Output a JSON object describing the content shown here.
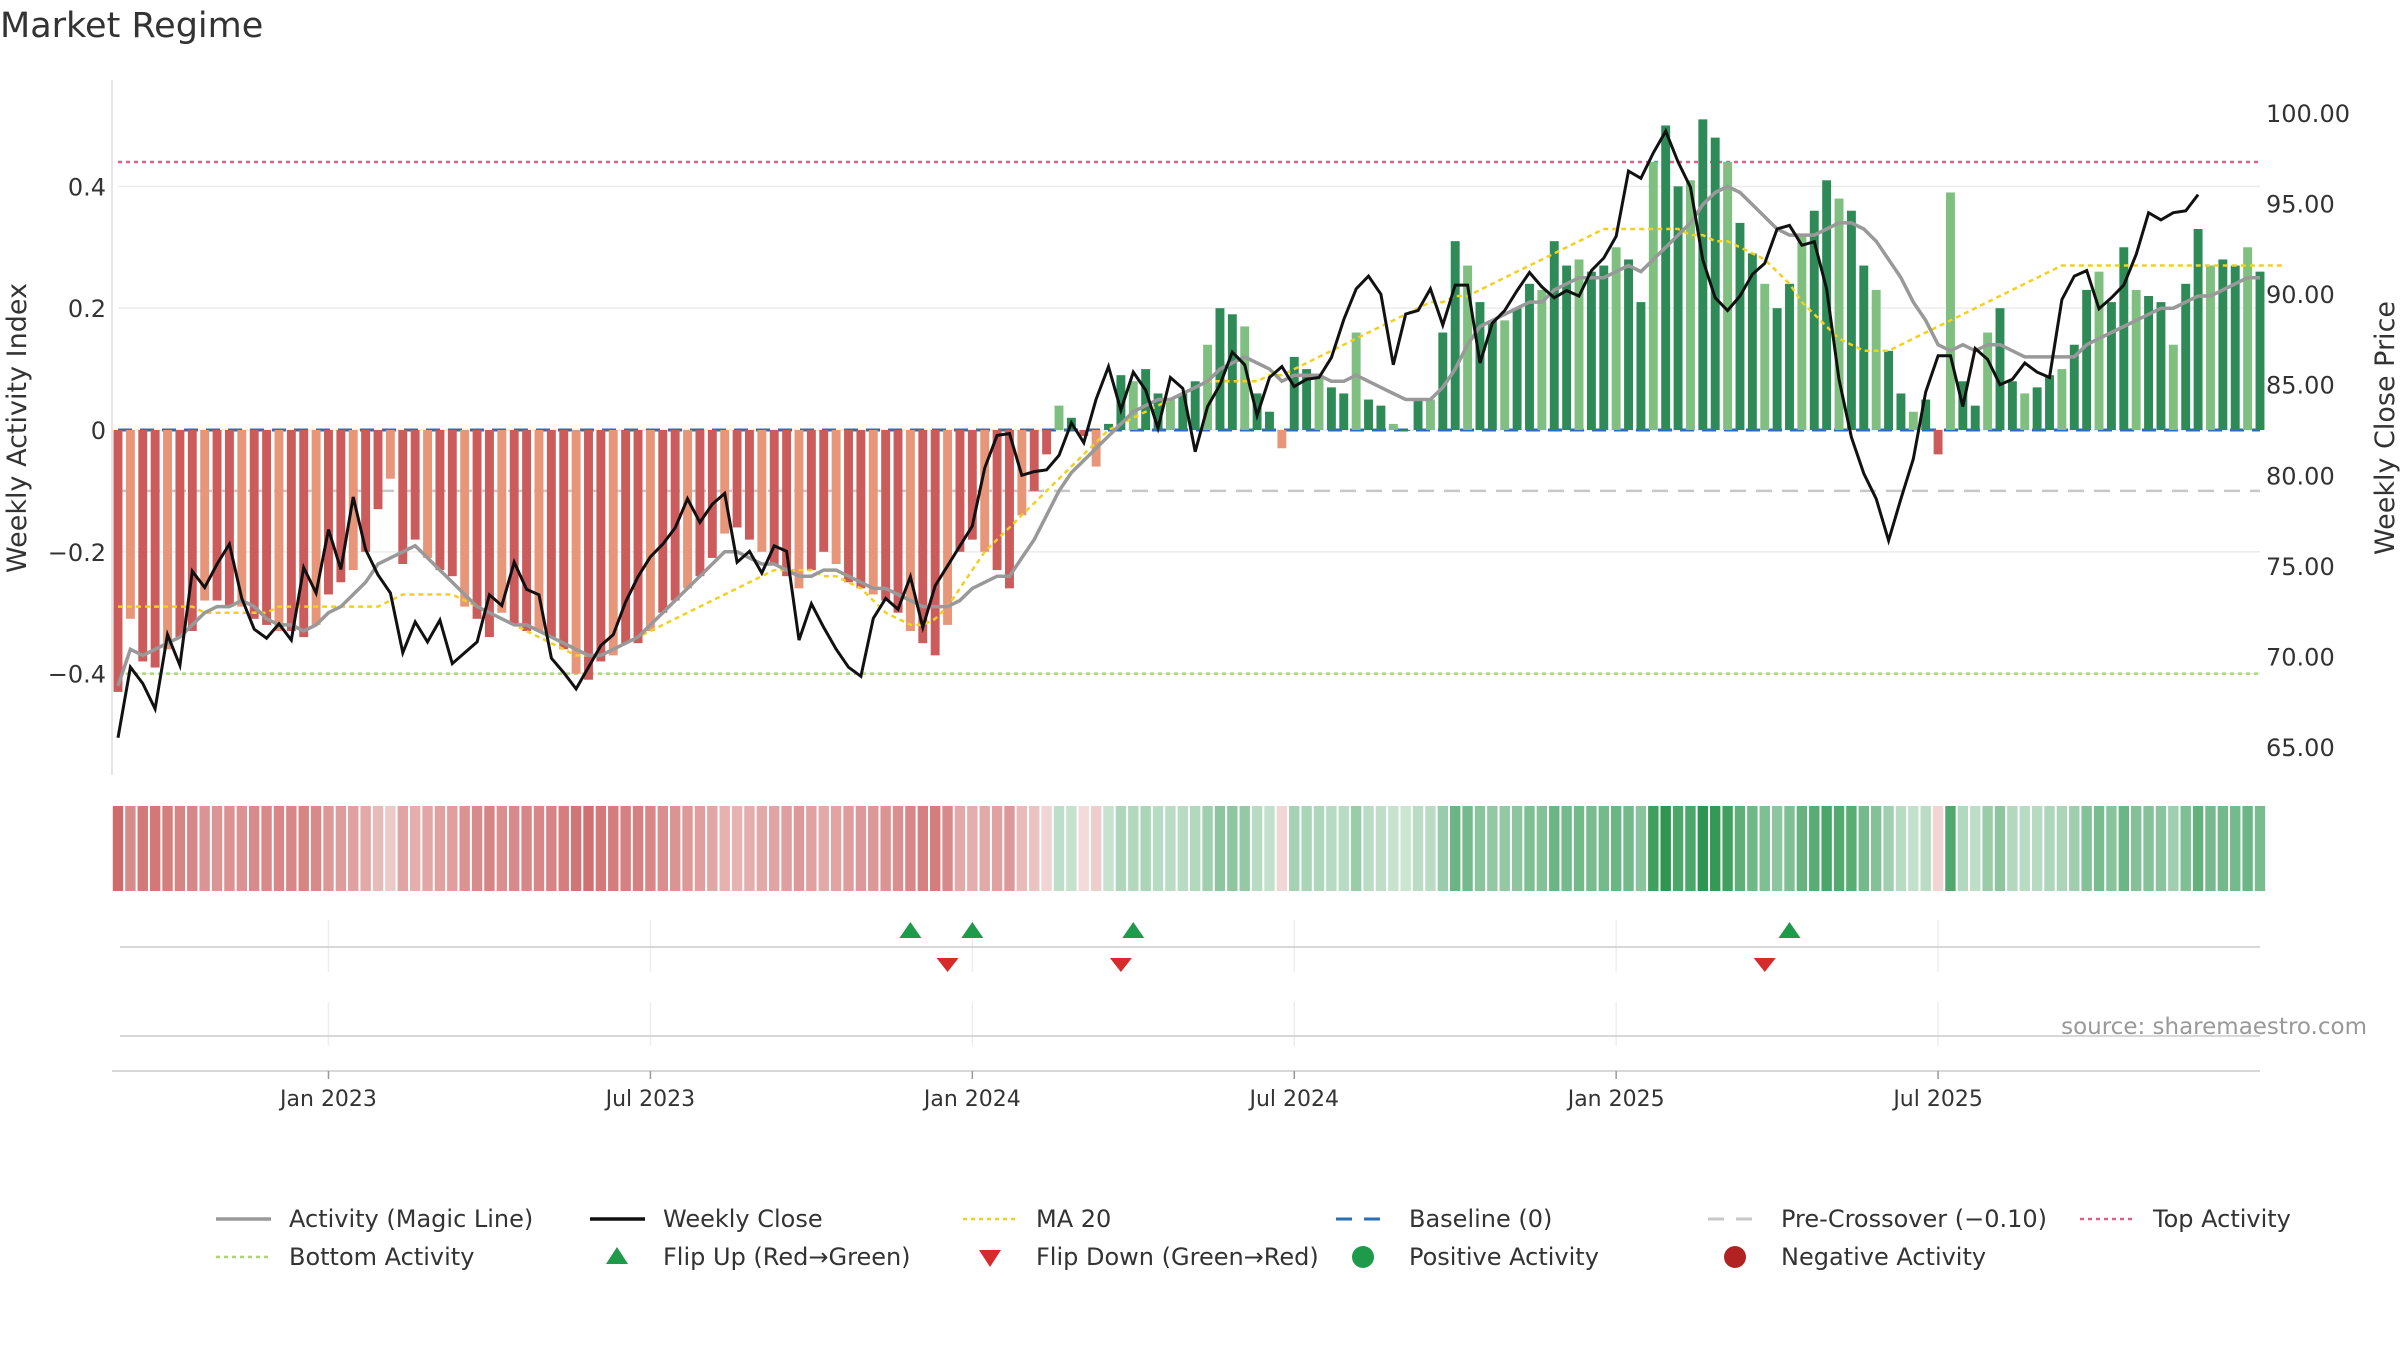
{
  "title": "Market Regime",
  "source": "source: sharemaestro.com",
  "colors": {
    "strong_red": "#cc5c5c",
    "light_red": "#e8967a",
    "strong_green": "#2e8b57",
    "light_green": "#7fbf7f",
    "magic_line": "#999999",
    "close_line": "#111111",
    "ma20": "#f0d020",
    "baseline": "#2a6fb5",
    "pre_crossover": "#c8c8c8",
    "top_activity": "#e0608a",
    "bottom_activity": "#a8d870",
    "flip_up": "#1e9b4a",
    "flip_down": "#d62b2b",
    "positive": "#1e9b4a",
    "negative": "#b22222"
  },
  "chart_data": {
    "type": "bar",
    "left_axis": {
      "label": "Weekly Activity Index",
      "ticks": [
        "0.4",
        "0.2",
        "0",
        "−0.2",
        "−0.4"
      ],
      "tick_values": [
        0.4,
        0.2,
        0,
        -0.2,
        -0.4
      ],
      "range": [
        -0.55,
        0.55
      ]
    },
    "right_axis": {
      "label": "Weekly Close Price",
      "ticks": [
        "100.00",
        "95.00",
        "90.00",
        "85.00",
        "80.00",
        "75.00",
        "70.00",
        "65.00"
      ],
      "tick_values": [
        100,
        95,
        90,
        85,
        80,
        75,
        70,
        65
      ],
      "range": [
        64,
        101
      ]
    },
    "x_axis": {
      "ticks": [
        "Jan 2023",
        "Jul 2023",
        "Jan 2024",
        "Jul 2024",
        "Jan 2025",
        "Jul 2025"
      ],
      "tick_weeks": [
        17,
        43,
        69,
        95,
        121,
        147
      ]
    },
    "reference_lines": {
      "top_activity": 0.44,
      "bottom_activity": -0.4,
      "pre_crossover": -0.1,
      "baseline": 0
    },
    "activity": [
      -0.43,
      -0.31,
      -0.38,
      -0.39,
      -0.36,
      -0.34,
      -0.33,
      -0.28,
      -0.28,
      -0.29,
      -0.29,
      -0.31,
      -0.32,
      -0.33,
      -0.33,
      -0.34,
      -0.32,
      -0.27,
      -0.25,
      -0.23,
      -0.2,
      -0.13,
      -0.08,
      -0.22,
      -0.18,
      -0.21,
      -0.23,
      -0.24,
      -0.29,
      -0.31,
      -0.34,
      -0.3,
      -0.32,
      -0.33,
      -0.33,
      -0.34,
      -0.36,
      -0.4,
      -0.41,
      -0.38,
      -0.37,
      -0.35,
      -0.35,
      -0.33,
      -0.3,
      -0.28,
      -0.26,
      -0.24,
      -0.21,
      -0.17,
      -0.16,
      -0.18,
      -0.2,
      -0.22,
      -0.24,
      -0.26,
      -0.23,
      -0.2,
      -0.22,
      -0.25,
      -0.26,
      -0.27,
      -0.28,
      -0.3,
      -0.33,
      -0.35,
      -0.37,
      -0.32,
      -0.2,
      -0.18,
      -0.2,
      -0.23,
      -0.26,
      -0.14,
      -0.1,
      -0.04,
      0.04,
      0.02,
      -0.01,
      -0.06,
      0.01,
      0.09,
      0.08,
      0.1,
      0.06,
      0.05,
      0.06,
      0.08,
      0.14,
      0.2,
      0.19,
      0.17,
      0.06,
      0.03,
      -0.03,
      0.12,
      0.1,
      0.09,
      0.07,
      0.06,
      0.16,
      0.05,
      0.04,
      0.01,
      0.0,
      0.05,
      0.05,
      0.16,
      0.31,
      0.27,
      0.21,
      0.18,
      0.18,
      0.2,
      0.24,
      0.23,
      0.31,
      0.27,
      0.28,
      0.26,
      0.27,
      0.3,
      0.28,
      0.21,
      0.44,
      0.5,
      0.4,
      0.41,
      0.51,
      0.48,
      0.44,
      0.34,
      0.29,
      0.24,
      0.2,
      0.24,
      0.32,
      0.36,
      0.41,
      0.38,
      0.36,
      0.27,
      0.23,
      0.13,
      0.06,
      0.03,
      0.05,
      -0.04,
      0.39,
      0.08,
      0.04,
      0.16,
      0.2,
      0.08,
      0.06,
      0.07,
      0.09,
      0.1,
      0.14,
      0.23,
      0.26,
      0.21,
      0.3,
      0.23,
      0.22,
      0.21,
      0.14,
      0.24,
      0.33,
      0.27,
      0.28,
      0.27,
      0.3,
      0.26
    ],
    "weekly_close": [
      65.5,
      69.4,
      68.5,
      67.1,
      71.2,
      69.5,
      74.7,
      73.8,
      75.1,
      76.2,
      73.2,
      71.5,
      71.0,
      71.8,
      70.9,
      74.9,
      73.5,
      77.0,
      74.8,
      78.8,
      75.9,
      74.5,
      73.5,
      70.2,
      71.9,
      70.8,
      72.0,
      69.6,
      70.2,
      70.8,
      73.4,
      72.8,
      75.2,
      73.7,
      73.4,
      69.9,
      69.1,
      68.2,
      69.4,
      70.6,
      71.2,
      73.0,
      74.4,
      75.5,
      76.2,
      77.1,
      78.7,
      77.4,
      78.4,
      79.0,
      75.2,
      75.8,
      74.6,
      76.1,
      75.8,
      70.9,
      72.9,
      71.6,
      70.4,
      69.4,
      68.9,
      72.1,
      73.2,
      72.6,
      74.4,
      71.6,
      73.9,
      75.0,
      76.1,
      77.2,
      80.4,
      82.2,
      82.3,
      80.0,
      80.2,
      80.3,
      81.1,
      82.9,
      81.8,
      84.2,
      86.0,
      83.6,
      85.7,
      84.7,
      82.6,
      85.4,
      84.8,
      81.3,
      83.8,
      85.0,
      86.8,
      86.1,
      83.3,
      85.4,
      86.0,
      84.9,
      85.3,
      85.4,
      86.5,
      88.6,
      90.3,
      91.0,
      90.0,
      86.1,
      88.9,
      89.1,
      90.3,
      88.3,
      90.5,
      90.5,
      86.2,
      88.4,
      89.1,
      90.2,
      91.2,
      90.4,
      89.8,
      90.2,
      89.9,
      91.3,
      92.0,
      93.2,
      96.8,
      96.4,
      97.8,
      99.0,
      97.3,
      95.9,
      91.9,
      89.8,
      89.1,
      89.9,
      91.1,
      91.7,
      93.6,
      93.8,
      92.7,
      92.9,
      90.3,
      85.3,
      82.1,
      80.1,
      78.7,
      76.4,
      78.7,
      80.9,
      84.6,
      86.6,
      86.6,
      83.8,
      87.0,
      86.4,
      85.0,
      85.3,
      86.2,
      85.7,
      85.4,
      89.7,
      91.0,
      91.3,
      89.2,
      89.8,
      90.5,
      92.2,
      94.5,
      94.1,
      94.5,
      94.6,
      95.5
    ],
    "magic_line": [
      -0.42,
      -0.36,
      -0.37,
      -0.36,
      -0.35,
      -0.34,
      -0.32,
      -0.3,
      -0.29,
      -0.29,
      -0.28,
      -0.29,
      -0.31,
      -0.32,
      -0.32,
      -0.33,
      -0.32,
      -0.3,
      -0.29,
      -0.27,
      -0.25,
      -0.22,
      -0.21,
      -0.2,
      -0.19,
      -0.21,
      -0.23,
      -0.25,
      -0.27,
      -0.29,
      -0.3,
      -0.31,
      -0.32,
      -0.32,
      -0.33,
      -0.34,
      -0.35,
      -0.36,
      -0.37,
      -0.37,
      -0.36,
      -0.35,
      -0.34,
      -0.32,
      -0.3,
      -0.28,
      -0.26,
      -0.24,
      -0.22,
      -0.2,
      -0.2,
      -0.21,
      -0.22,
      -0.22,
      -0.23,
      -0.24,
      -0.24,
      -0.23,
      -0.23,
      -0.24,
      -0.25,
      -0.26,
      -0.26,
      -0.27,
      -0.28,
      -0.29,
      -0.29,
      -0.29,
      -0.28,
      -0.26,
      -0.25,
      -0.24,
      -0.24,
      -0.21,
      -0.18,
      -0.14,
      -0.1,
      -0.07,
      -0.05,
      -0.03,
      -0.01,
      0.01,
      0.03,
      0.04,
      0.05,
      0.05,
      0.06,
      0.07,
      0.08,
      0.1,
      0.11,
      0.12,
      0.11,
      0.1,
      0.08,
      0.09,
      0.09,
      0.09,
      0.08,
      0.08,
      0.09,
      0.08,
      0.07,
      0.06,
      0.05,
      0.05,
      0.05,
      0.07,
      0.1,
      0.14,
      0.17,
      0.18,
      0.19,
      0.2,
      0.21,
      0.21,
      0.23,
      0.24,
      0.25,
      0.25,
      0.25,
      0.26,
      0.27,
      0.26,
      0.28,
      0.3,
      0.32,
      0.34,
      0.37,
      0.39,
      0.4,
      0.39,
      0.37,
      0.35,
      0.33,
      0.32,
      0.32,
      0.32,
      0.33,
      0.34,
      0.34,
      0.33,
      0.31,
      0.28,
      0.25,
      0.21,
      0.18,
      0.14,
      0.13,
      0.14,
      0.13,
      0.14,
      0.14,
      0.13,
      0.12,
      0.12,
      0.12,
      0.12,
      0.12,
      0.14,
      0.15,
      0.16,
      0.17,
      0.18,
      0.19,
      0.2,
      0.2,
      0.21,
      0.22,
      0.22,
      0.23,
      0.24,
      0.25,
      0.25
    ],
    "ma20": [
      -0.29,
      -0.29,
      -0.29,
      -0.29,
      -0.29,
      -0.29,
      -0.29,
      -0.3,
      -0.3,
      -0.3,
      -0.3,
      -0.3,
      -0.3,
      -0.29,
      -0.29,
      -0.29,
      -0.29,
      -0.29,
      -0.29,
      -0.29,
      -0.29,
      -0.29,
      -0.28,
      -0.27,
      -0.27,
      -0.27,
      -0.27,
      -0.27,
      -0.28,
      -0.29,
      -0.3,
      -0.31,
      -0.32,
      -0.33,
      -0.34,
      -0.35,
      -0.36,
      -0.37,
      -0.37,
      -0.37,
      -0.36,
      -0.35,
      -0.34,
      -0.33,
      -0.32,
      -0.31,
      -0.3,
      -0.29,
      -0.28,
      -0.27,
      -0.26,
      -0.25,
      -0.24,
      -0.23,
      -0.23,
      -0.23,
      -0.23,
      -0.24,
      -0.24,
      -0.25,
      -0.26,
      -0.28,
      -0.3,
      -0.31,
      -0.32,
      -0.32,
      -0.31,
      -0.29,
      -0.26,
      -0.23,
      -0.2,
      -0.18,
      -0.16,
      -0.14,
      -0.12,
      -0.1,
      -0.08,
      -0.06,
      -0.04,
      -0.02,
      0.0,
      0.01,
      0.02,
      0.03,
      0.04,
      0.05,
      0.06,
      0.07,
      0.08,
      0.08,
      0.08,
      0.08,
      0.08,
      0.09,
      0.09,
      0.1,
      0.11,
      0.12,
      0.13,
      0.14,
      0.15,
      0.16,
      0.17,
      0.18,
      0.19,
      0.2,
      0.21,
      0.21,
      0.22,
      0.22,
      0.23,
      0.24,
      0.25,
      0.26,
      0.27,
      0.28,
      0.29,
      0.3,
      0.31,
      0.32,
      0.33,
      0.33,
      0.33,
      0.33,
      0.33,
      0.33,
      0.33,
      0.32,
      0.32,
      0.31,
      0.31,
      0.3,
      0.29,
      0.28,
      0.26,
      0.24,
      0.21,
      0.19,
      0.17,
      0.15,
      0.14,
      0.13,
      0.13,
      0.13,
      0.14,
      0.15,
      0.16,
      0.17,
      0.18,
      0.19,
      0.2,
      0.21,
      0.22,
      0.23,
      0.24,
      0.25,
      0.26,
      0.27,
      0.27,
      0.27,
      0.27,
      0.27,
      0.27,
      0.27,
      0.27,
      0.27,
      0.27,
      0.27,
      0.27,
      0.27,
      0.27,
      0.27,
      0.27,
      0.27,
      0.27,
      0.27
    ],
    "flip_up_weeks": [
      64,
      69,
      82,
      135
    ],
    "flip_down_weeks": [
      67,
      81,
      133
    ],
    "legend": [
      {
        "label": "Activity (Magic Line)",
        "style": "line",
        "color": "#999999"
      },
      {
        "label": "Weekly Close",
        "style": "line",
        "color": "#111111"
      },
      {
        "label": "MA 20",
        "style": "dotted",
        "color": "#f0d020"
      },
      {
        "label": "Baseline (0)",
        "style": "dashed",
        "color": "#2a6fb5"
      },
      {
        "label": "Pre-Crossover (−0.10)",
        "style": "dashed",
        "color": "#c8c8c8"
      },
      {
        "label": "Top Activity",
        "style": "dotted",
        "color": "#e0608a"
      },
      {
        "label": "Bottom Activity",
        "style": "dotted",
        "color": "#a8d870"
      },
      {
        "label": "Flip Up (Red→Green)",
        "style": "triangle-up",
        "color": "#1e9b4a"
      },
      {
        "label": "Flip Down (Green→Red)",
        "style": "triangle-down",
        "color": "#d62b2b"
      },
      {
        "label": "Positive Activity",
        "style": "circle",
        "color": "#1e9b4a"
      },
      {
        "label": "Negative Activity",
        "style": "circle",
        "color": "#b22222"
      }
    ]
  }
}
